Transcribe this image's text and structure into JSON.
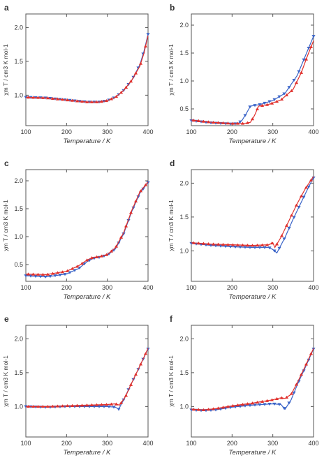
{
  "colors": {
    "blue": "#3a64c8",
    "red": "#e0302c",
    "axis": "#555555",
    "text": "#333333"
  },
  "chart_data": [
    {
      "panel": "a",
      "type": "line",
      "xlabel": "Temperature / K",
      "ylabel": "χm T / cm3 K mol-1",
      "xlim": [
        100,
        400
      ],
      "ylim": [
        0.55,
        2.2
      ],
      "xticks": [
        100,
        200,
        300,
        400
      ],
      "yticks": [
        1.0,
        1.5,
        2.0
      ],
      "grid": false,
      "legend": "none",
      "series": [
        {
          "color": "blue",
          "markers": "down-triangle",
          "x": [
            100,
            150,
            200,
            250,
            280,
            300,
            320,
            340,
            360,
            380,
            390,
            400
          ],
          "y": [
            0.97,
            0.96,
            0.93,
            0.9,
            0.9,
            0.92,
            0.97,
            1.07,
            1.22,
            1.45,
            1.65,
            1.9
          ]
        },
        {
          "color": "red",
          "markers": "up-triangle",
          "x": [
            100,
            150,
            200,
            250,
            280,
            300,
            320,
            340,
            360,
            380,
            390,
            400
          ],
          "y": [
            0.97,
            0.96,
            0.93,
            0.9,
            0.9,
            0.92,
            0.97,
            1.07,
            1.22,
            1.43,
            1.62,
            1.88
          ]
        }
      ]
    },
    {
      "panel": "b",
      "type": "line",
      "xlabel": "Temperature / K",
      "ylabel": "χm T / cm3 K mol-1",
      "xlim": [
        100,
        400
      ],
      "ylim": [
        0.2,
        2.2
      ],
      "xticks": [
        100,
        200,
        300,
        400
      ],
      "yticks": [
        0.5,
        1.0,
        1.5,
        2.0
      ],
      "grid": false,
      "legend": "none",
      "series": [
        {
          "color": "blue",
          "markers": "down-triangle",
          "x": [
            100,
            150,
            200,
            215,
            225,
            235,
            245,
            270,
            300,
            330,
            360,
            380,
            400
          ],
          "y": [
            0.29,
            0.25,
            0.23,
            0.24,
            0.3,
            0.42,
            0.55,
            0.58,
            0.65,
            0.78,
            1.1,
            1.45,
            1.8
          ]
        },
        {
          "color": "red",
          "markers": "up-triangle",
          "x": [
            100,
            150,
            200,
            230,
            245,
            255,
            265,
            290,
            320,
            350,
            370,
            385,
            400
          ],
          "y": [
            0.3,
            0.26,
            0.24,
            0.24,
            0.26,
            0.38,
            0.55,
            0.58,
            0.66,
            0.85,
            1.15,
            1.45,
            1.72
          ]
        }
      ]
    },
    {
      "panel": "c",
      "type": "line",
      "xlabel": "Temperature / K",
      "ylabel": "χm T / cm3 K mol-1",
      "xlim": [
        100,
        400
      ],
      "ylim": [
        0.2,
        2.2
      ],
      "xticks": [
        100,
        200,
        300,
        400
      ],
      "yticks": [
        0.5,
        1.0,
        1.5,
        2.0
      ],
      "grid": false,
      "legend": "none",
      "series": [
        {
          "color": "blue",
          "markers": "down-triangle",
          "x": [
            100,
            150,
            200,
            230,
            250,
            265,
            280,
            300,
            320,
            340,
            360,
            380,
            400
          ],
          "y": [
            0.3,
            0.28,
            0.33,
            0.43,
            0.55,
            0.61,
            0.63,
            0.67,
            0.78,
            1.05,
            1.45,
            1.78,
            1.97
          ]
        },
        {
          "color": "red",
          "markers": "up-triangle",
          "x": [
            100,
            150,
            200,
            230,
            250,
            265,
            280,
            300,
            320,
            340,
            360,
            380,
            400
          ],
          "y": [
            0.33,
            0.32,
            0.38,
            0.48,
            0.58,
            0.63,
            0.64,
            0.68,
            0.8,
            1.07,
            1.47,
            1.8,
            1.98
          ]
        }
      ]
    },
    {
      "panel": "d",
      "type": "line",
      "xlabel": "Temperature / K",
      "ylabel": "χm T / cm3 K mol-1",
      "xlim": [
        100,
        400
      ],
      "ylim": [
        0.55,
        2.2
      ],
      "xticks": [
        100,
        200,
        300,
        400
      ],
      "yticks": [
        1.0,
        1.5,
        2.0
      ],
      "grid": false,
      "legend": "none",
      "series": [
        {
          "color": "blue",
          "markers": "down-triangle",
          "x": [
            100,
            150,
            200,
            250,
            290,
            300,
            310,
            330,
            350,
            370,
            390,
            400
          ],
          "y": [
            1.11,
            1.08,
            1.06,
            1.05,
            1.05,
            1.02,
            0.97,
            1.2,
            1.47,
            1.72,
            1.97,
            2.08
          ]
        },
        {
          "color": "red",
          "markers": "up-triangle",
          "x": [
            100,
            150,
            200,
            250,
            290,
            300,
            305,
            320,
            340,
            360,
            380,
            400
          ],
          "y": [
            1.12,
            1.1,
            1.09,
            1.08,
            1.09,
            1.12,
            1.05,
            1.2,
            1.45,
            1.7,
            1.92,
            2.1
          ]
        }
      ]
    },
    {
      "panel": "e",
      "type": "line",
      "xlabel": "Temperature / K",
      "ylabel": "χm T / cm3 K mol-1",
      "xlim": [
        100,
        400
      ],
      "ylim": [
        0.55,
        2.2
      ],
      "xticks": [
        100,
        200,
        300,
        400
      ],
      "yticks": [
        1.0,
        1.5,
        2.0
      ],
      "grid": false,
      "legend": "none",
      "series": [
        {
          "color": "blue",
          "markers": "down-triangle",
          "x": [
            100,
            150,
            200,
            250,
            300,
            320,
            328,
            340,
            360,
            380,
            400
          ],
          "y": [
            1.0,
            0.99,
            1.0,
            1.0,
            1.0,
            0.99,
            0.96,
            1.1,
            1.35,
            1.6,
            1.85
          ]
        },
        {
          "color": "red",
          "markers": "up-triangle",
          "x": [
            100,
            150,
            200,
            250,
            300,
            320,
            330,
            345,
            360,
            380,
            400
          ],
          "y": [
            1.0,
            1.0,
            1.01,
            1.02,
            1.03,
            1.04,
            1.02,
            1.15,
            1.35,
            1.6,
            1.86
          ]
        }
      ]
    },
    {
      "panel": "f",
      "type": "line",
      "xlabel": "Temperature / K",
      "ylabel": "χm T / cm3 K mol-1",
      "xlim": [
        100,
        400
      ],
      "ylim": [
        0.55,
        2.2
      ],
      "xticks": [
        100,
        200,
        300,
        400
      ],
      "yticks": [
        1.0,
        1.5,
        2.0
      ],
      "grid": false,
      "legend": "none",
      "series": [
        {
          "color": "blue",
          "markers": "down-triangle",
          "x": [
            100,
            130,
            160,
            200,
            250,
            300,
            320,
            330,
            345,
            360,
            380,
            400
          ],
          "y": [
            0.95,
            0.94,
            0.95,
            0.99,
            1.02,
            1.04,
            1.03,
            0.96,
            1.1,
            1.32,
            1.58,
            1.85
          ]
        },
        {
          "color": "red",
          "markers": "up-triangle",
          "x": [
            100,
            130,
            160,
            200,
            250,
            300,
            320,
            330,
            345,
            360,
            380,
            400
          ],
          "y": [
            0.96,
            0.95,
            0.97,
            1.01,
            1.05,
            1.1,
            1.13,
            1.12,
            1.18,
            1.35,
            1.6,
            1.86
          ]
        }
      ]
    }
  ]
}
